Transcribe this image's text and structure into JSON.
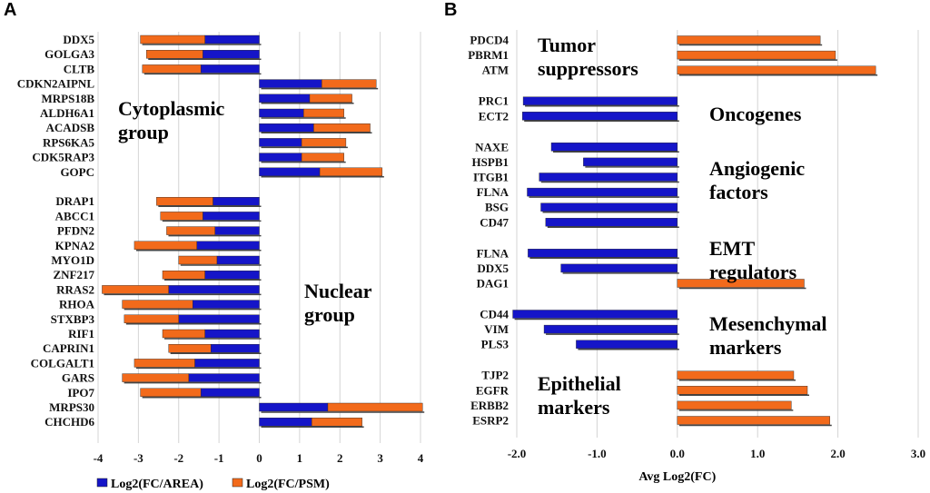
{
  "colors": {
    "area": "#1515c8",
    "psm": "#f26a1b",
    "grid": "#d4d4d4"
  },
  "chart_data": [
    {
      "panel": "A",
      "type": "bar",
      "orientation": "horizontal",
      "stacked": true,
      "xlim": [
        -4,
        4
      ],
      "xticks": [
        "-4",
        "-3",
        "-2",
        "-1",
        "0",
        "1",
        "2",
        "3",
        "4"
      ],
      "xlabel": "",
      "legend": {
        "position": "bottom",
        "entries": [
          "Log2(FC/AREA)",
          "Log2(FC/PSM)"
        ]
      },
      "series_names": [
        "Log2(FC/AREA)",
        "Log2(FC/PSM)"
      ],
      "rows": [
        {
          "label": "DDX5",
          "area": -1.35,
          "psm": -1.6
        },
        {
          "label": "GOLGA3",
          "area": -1.4,
          "psm": -1.4
        },
        {
          "label": "CLTB",
          "area": -1.45,
          "psm": -1.45
        },
        {
          "label": "CDKN2AIPNL",
          "area": 1.55,
          "psm": 1.35
        },
        {
          "label": "MRPS18B",
          "area": 1.25,
          "psm": 1.05
        },
        {
          "label": "ALDH6A1",
          "area": 1.1,
          "psm": 1.0
        },
        {
          "label": "ACADSB",
          "area": 1.35,
          "psm": 1.4
        },
        {
          "label": "RPS6KA5",
          "area": 1.05,
          "psm": 1.1
        },
        {
          "label": "CDK5RAP3",
          "area": 1.05,
          "psm": 1.05
        },
        {
          "label": "GOPC",
          "area": 1.5,
          "psm": 1.55
        },
        {
          "gap": true
        },
        {
          "label": "DRAP1",
          "area": -1.15,
          "psm": -1.4
        },
        {
          "label": "ABCC1",
          "area": -1.4,
          "psm": -1.05
        },
        {
          "label": "PFDN2",
          "area": -1.1,
          "psm": -1.2
        },
        {
          "label": "KPNA2",
          "area": -1.55,
          "psm": -1.55
        },
        {
          "label": "MYO1D",
          "area": -1.05,
          "psm": -0.95
        },
        {
          "label": "ZNF217",
          "area": -1.35,
          "psm": -1.05
        },
        {
          "label": "RRAS2",
          "area": -2.25,
          "psm": -1.65
        },
        {
          "label": "RHOA",
          "area": -1.65,
          "psm": -1.75
        },
        {
          "label": "STXBP3",
          "area": -2.0,
          "psm": -1.35
        },
        {
          "label": "RIF1",
          "area": -1.35,
          "psm": -1.05
        },
        {
          "label": "CAPRIN1",
          "area": -1.2,
          "psm": -1.05
        },
        {
          "label": "COLGALT1",
          "area": -1.6,
          "psm": -1.5
        },
        {
          "label": "GARS",
          "area": -1.75,
          "psm": -1.65
        },
        {
          "label": "IPO7",
          "area": -1.45,
          "psm": -1.5
        },
        {
          "label": "MRPS30",
          "area": 1.7,
          "psm": 2.35
        },
        {
          "label": "CHCHD6",
          "area": 1.3,
          "psm": 1.25
        }
      ],
      "annotations": [
        {
          "lines": [
            "Cytoplasmic",
            "group"
          ]
        },
        {
          "lines": [
            "Nuclear",
            "group"
          ]
        }
      ]
    },
    {
      "panel": "B",
      "type": "bar",
      "orientation": "horizontal",
      "xlim": [
        -2.0,
        3.0
      ],
      "xticks": [
        "-2.0",
        "-1.0",
        "0.0",
        "1.0",
        "2.0",
        "3.0"
      ],
      "xlabel": "Avg Log2(FC)",
      "rows": [
        {
          "label": "PDCD4",
          "value": 1.78
        },
        {
          "label": "PBRM1",
          "value": 1.97
        },
        {
          "label": "ATM",
          "value": 2.47
        },
        {
          "gap": true
        },
        {
          "label": "PRC1",
          "value": -1.92
        },
        {
          "label": "ECT2",
          "value": -1.93
        },
        {
          "gap": true
        },
        {
          "label": "NAXE",
          "value": -1.57
        },
        {
          "label": "HSPB1",
          "value": -1.17
        },
        {
          "label": "ITGB1",
          "value": -1.72
        },
        {
          "label": "FLNA",
          "value": -1.87
        },
        {
          "label": "BSG",
          "value": -1.7
        },
        {
          "label": "CD47",
          "value": -1.64
        },
        {
          "gap": true
        },
        {
          "label": "FLNA",
          "value": -1.86
        },
        {
          "label": "DDX5",
          "value": -1.45
        },
        {
          "label": "DAG1",
          "value": 1.58
        },
        {
          "gap": true
        },
        {
          "label": "CD44",
          "value": -2.05
        },
        {
          "label": "VIM",
          "value": -1.66
        },
        {
          "label": "PLS3",
          "value": -1.26
        },
        {
          "gap": true
        },
        {
          "label": "TJP2",
          "value": 1.45
        },
        {
          "label": "EGFR",
          "value": 1.62
        },
        {
          "label": "ERBB2",
          "value": 1.42
        },
        {
          "label": "ESRP2",
          "value": 1.9
        }
      ],
      "annotations": [
        {
          "lines": [
            "Tumor",
            "suppressors"
          ]
        },
        {
          "lines": [
            "Oncogenes"
          ]
        },
        {
          "lines": [
            "Angiogenic",
            "factors"
          ]
        },
        {
          "lines": [
            "EMT",
            "regulators"
          ]
        },
        {
          "lines": [
            "Mesenchymal",
            "markers"
          ]
        },
        {
          "lines": [
            "Epithelial",
            "markers"
          ]
        }
      ]
    }
  ]
}
